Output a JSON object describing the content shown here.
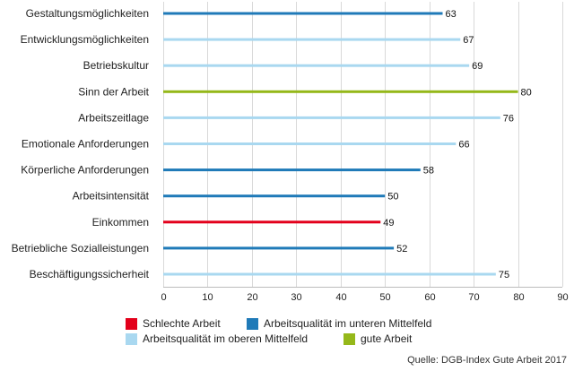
{
  "chart_data": {
    "type": "bar",
    "orientation": "horizontal",
    "categories": [
      "Gestaltungsmöglichkeiten",
      "Entwicklungsmöglichkeiten",
      "Betriebskultur",
      "Sinn der Arbeit",
      "Arbeitszeitlage",
      "Emotionale Anforderungen",
      "Körperliche Anforderungen",
      "Arbeitsintensität",
      "Einkommen",
      "Betriebliche Sozialleistungen",
      "Beschäftigungssicherheit"
    ],
    "values": [
      63,
      67,
      69,
      80,
      76,
      66,
      58,
      50,
      49,
      52,
      75
    ],
    "bar_classes": [
      "mid_low",
      "mid_high",
      "mid_high",
      "good",
      "mid_high",
      "mid_high",
      "mid_low",
      "mid_low",
      "bad",
      "mid_low",
      "mid_high"
    ],
    "xlim": [
      0,
      90
    ],
    "xticks": [
      0,
      10,
      20,
      30,
      40,
      50,
      60,
      70,
      80,
      90
    ],
    "grid": "vertical",
    "legend": {
      "placement": "bottom",
      "items": [
        {
          "key": "bad",
          "label": "Schlechte Arbeit",
          "color": "#e3001b"
        },
        {
          "key": "mid_low",
          "label": "Arbeitsqualität im unteren Mittelfeld",
          "color": "#1f7ab8"
        },
        {
          "key": "mid_high",
          "label": "Arbeitsqualität im oberen Mittelfeld",
          "color": "#a9d8f0"
        },
        {
          "key": "good",
          "label": "gute Arbeit",
          "color": "#95b81a"
        }
      ]
    }
  },
  "source_text": "Quelle: DGB-Index Gute Arbeit 2017"
}
